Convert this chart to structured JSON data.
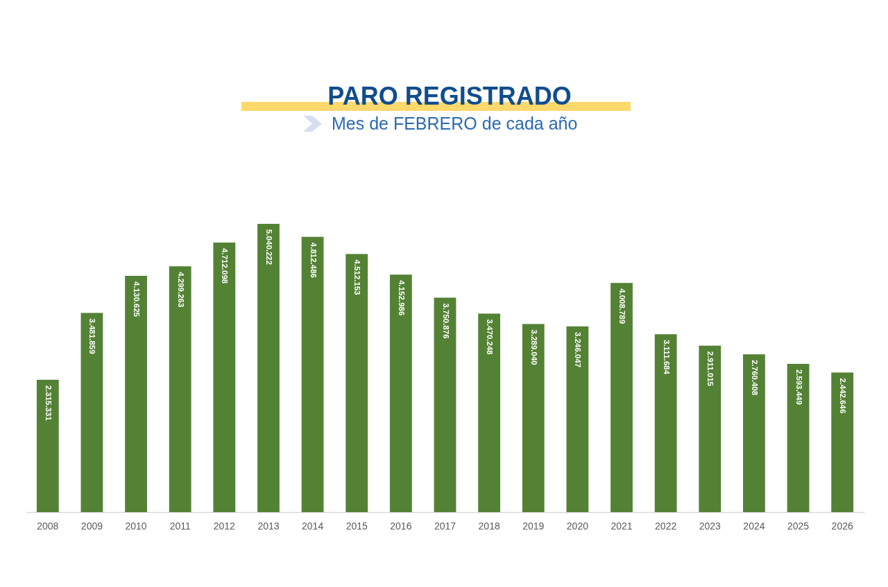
{
  "chart_data": {
    "type": "bar",
    "title": "PARO REGISTRADO",
    "subtitle": "Mes de FEBRERO de cada año",
    "categories": [
      "2008",
      "2009",
      "2010",
      "2011",
      "2012",
      "2013",
      "2014",
      "2015",
      "2016",
      "2017",
      "2018",
      "2019",
      "2020",
      "2021",
      "2022",
      "2023",
      "2024",
      "2025",
      "2026"
    ],
    "values": [
      2315331,
      3481859,
      4130625,
      4299263,
      4712098,
      5040222,
      4812486,
      4512153,
      4152986,
      3750876,
      3470248,
      3289040,
      3246047,
      4008789,
      3111684,
      2911015,
      2760408,
      2593449,
      2442646
    ],
    "value_labels": [
      "2.315.331",
      "3.481.859",
      "4.130.625",
      "4.299.263",
      "4.712.098",
      "5.040.222",
      "4.812.486",
      "4.512.153",
      "4.152.986",
      "3.750.876",
      "3.470.248",
      "3.289.040",
      "3.246.047",
      "4.008.789",
      "3.111.684",
      "2.911.015",
      "2.760.408",
      "2.593.449",
      "2.442.646"
    ],
    "color": "#548235",
    "grid": false
  }
}
